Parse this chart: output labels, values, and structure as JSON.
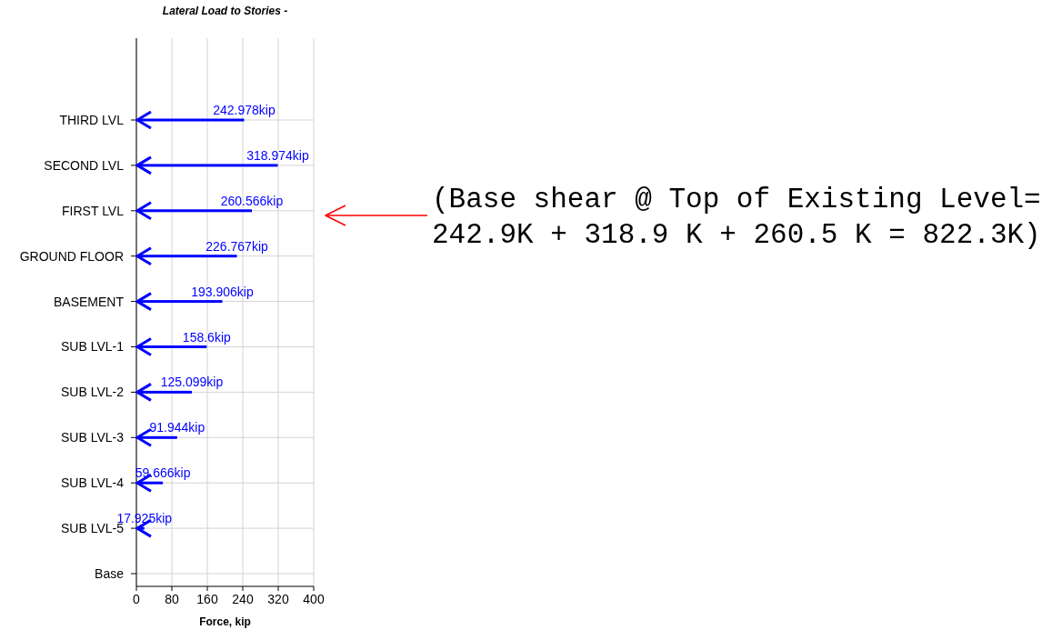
{
  "chart_data": {
    "type": "bar",
    "orientation": "horizontal",
    "title": "Lateral Load to Stories -",
    "xlabel": "Force, kip",
    "categories": [
      "THIRD LVL",
      "SECOND LVL",
      "FIRST LVL",
      "GROUND FLOOR",
      "BASEMENT",
      "SUB LVL-1",
      "SUB LVL-2",
      "SUB LVL-3",
      "SUB LVL-4",
      "SUB LVL-5",
      "Base"
    ],
    "values": [
      242.978,
      318.974,
      260.566,
      226.767,
      193.906,
      158.6,
      125.099,
      91.944,
      59.666,
      17.925,
      null
    ],
    "value_labels": [
      "242.978kip",
      "318.974kip",
      "260.566kip",
      "226.767kip",
      "193.906kip",
      "158.6kip",
      "125.099kip",
      "91.944kip",
      "59.666kip",
      "17.925kip",
      null
    ],
    "color": "#0000ff",
    "xlim": [
      0,
      400
    ],
    "xticks": [
      0,
      80,
      160,
      240,
      320,
      400
    ],
    "grid": true,
    "annotations": [
      "(Base shear @ Top of Existing Level=\n242.9K + 318.9 K + 260.5 K = 822.3K)"
    ]
  }
}
